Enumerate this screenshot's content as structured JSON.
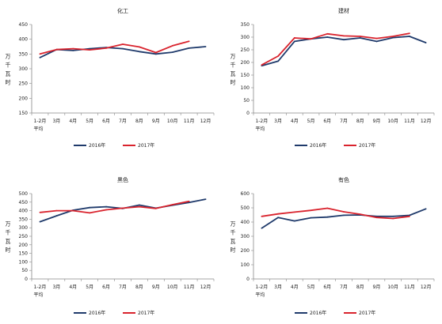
{
  "chart_data": [
    {
      "type": "line",
      "title": "化工",
      "ylabel": "万千瓦时",
      "categories": [
        "1-2月平均",
        "3月",
        "4月",
        "5月",
        "6月",
        "7月",
        "8月",
        "9月",
        "10月",
        "11月",
        "12月"
      ],
      "yticks": [
        150,
        200,
        250,
        300,
        350,
        400,
        450
      ],
      "ylim": [
        150,
        450
      ],
      "grid": false,
      "legend": "bottom",
      "series": [
        {
          "name": "2016年",
          "color": "#1f3a6b",
          "values": [
            338,
            365,
            362,
            368,
            372,
            368,
            358,
            350,
            356,
            370,
            375
          ]
        },
        {
          "name": "2017年",
          "color": "#d9232d",
          "values": [
            350,
            365,
            368,
            364,
            370,
            383,
            374,
            355,
            378,
            393,
            null
          ]
        }
      ]
    },
    {
      "type": "line",
      "title": "建材",
      "ylabel": "万千瓦时",
      "categories": [
        "1-2月平均",
        "3月",
        "4月",
        "5月",
        "6月",
        "7月",
        "8月",
        "9月",
        "10月",
        "11月",
        "12月"
      ],
      "yticks": [
        0,
        50,
        100,
        150,
        200,
        250,
        300,
        350
      ],
      "ylim": [
        0,
        350
      ],
      "grid": false,
      "legend": "bottom",
      "series": [
        {
          "name": "2016年",
          "color": "#1f3a6b",
          "values": [
            187,
            205,
            283,
            293,
            300,
            290,
            297,
            283,
            298,
            303,
            278
          ]
        },
        {
          "name": "2017年",
          "color": "#d9232d",
          "values": [
            190,
            225,
            297,
            293,
            313,
            305,
            303,
            295,
            303,
            315,
            null
          ]
        }
      ]
    },
    {
      "type": "line",
      "title": "黑色",
      "ylabel": "万千瓦时",
      "categories": [
        "1-2月平均",
        "3月",
        "4月",
        "5月",
        "6月",
        "7月",
        "8月",
        "9月",
        "10月",
        "11月",
        "12月"
      ],
      "yticks": [
        0,
        50,
        100,
        150,
        200,
        250,
        300,
        350,
        400,
        450,
        500
      ],
      "ylim": [
        0,
        500
      ],
      "grid": false,
      "legend": "bottom",
      "series": [
        {
          "name": "2016年",
          "color": "#1f3a6b",
          "values": [
            335,
            370,
            403,
            418,
            423,
            413,
            433,
            415,
            432,
            448,
            467
          ]
        },
        {
          "name": "2017年",
          "color": "#d9232d",
          "values": [
            390,
            400,
            400,
            387,
            405,
            415,
            423,
            413,
            435,
            455,
            null
          ]
        }
      ]
    },
    {
      "type": "line",
      "title": "有色",
      "ylabel": "万千瓦时",
      "categories": [
        "1-2月平均",
        "3月",
        "4月",
        "5月",
        "6月",
        "7月",
        "8月",
        "9月",
        "10月",
        "11月",
        "12月"
      ],
      "yticks": [
        0,
        100,
        200,
        300,
        400,
        500,
        600
      ],
      "ylim": [
        0,
        600
      ],
      "grid": false,
      "legend": "bottom",
      "series": [
        {
          "name": "2016年",
          "color": "#1f3a6b",
          "values": [
            357,
            432,
            408,
            430,
            435,
            448,
            450,
            440,
            440,
            447,
            493
          ]
        },
        {
          "name": "2017年",
          "color": "#d9232d",
          "values": [
            440,
            457,
            470,
            482,
            497,
            472,
            455,
            432,
            425,
            440,
            null
          ]
        }
      ]
    }
  ]
}
